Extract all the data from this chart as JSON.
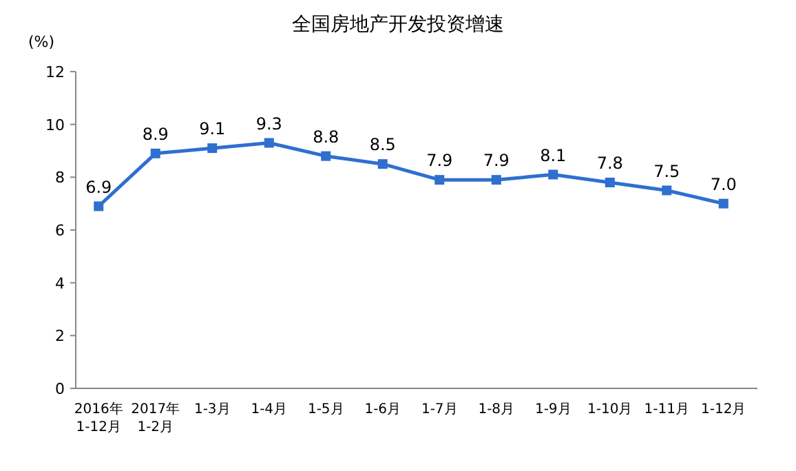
{
  "chart_data": {
    "type": "line",
    "title": "全国房地产开发投资增速",
    "ylabel": "(%)",
    "categories": [
      "2016年\n1-12月",
      "2017年\n1-2月",
      "1-3月",
      "1-4月",
      "1-5月",
      "1-6月",
      "1-7月",
      "1-8月",
      "1-9月",
      "1-10月",
      "1-11月",
      "1-12月"
    ],
    "series": [
      {
        "color": "#2e6fd0",
        "values": [
          6.9,
          8.9,
          9.1,
          9.3,
          8.8,
          8.5,
          7.9,
          7.9,
          8.1,
          7.8,
          7.5,
          7.0
        ],
        "value_labels": [
          "6.9",
          "8.9",
          "9.1",
          "9.3",
          "8.8",
          "8.5",
          "7.9",
          "7.9",
          "8.1",
          "7.8",
          "7.5",
          "7.0"
        ]
      }
    ],
    "ylim": [
      0,
      12
    ],
    "yticks": [
      0,
      2,
      4,
      6,
      8,
      10,
      12
    ],
    "marker": "square",
    "grid": false
  }
}
